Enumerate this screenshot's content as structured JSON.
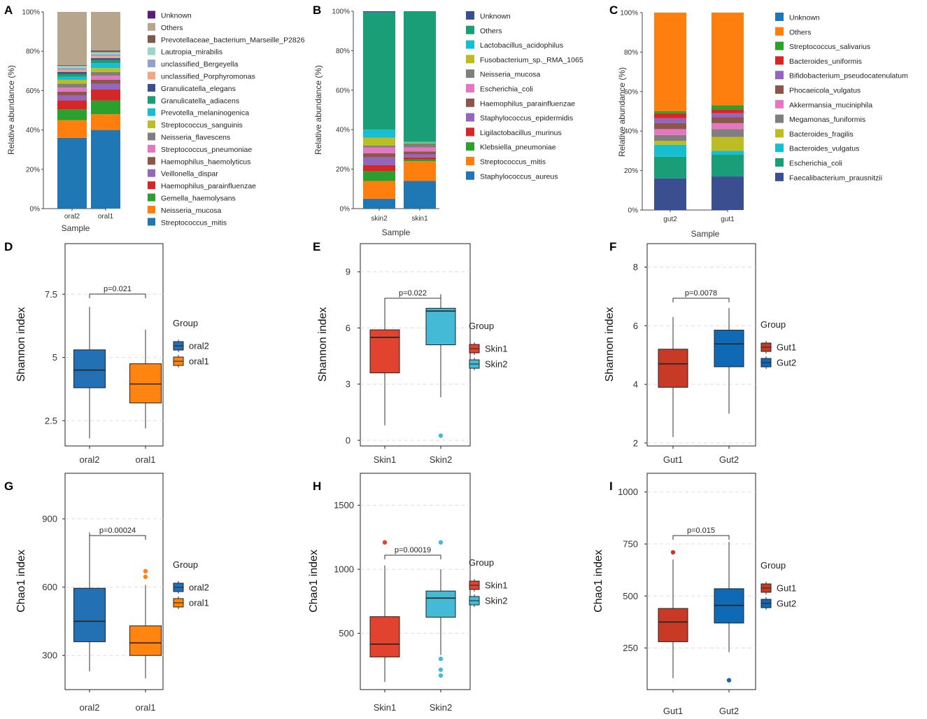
{
  "figure": {
    "title": ""
  },
  "chart_data": [
    {
      "panel": "A",
      "type": "bar",
      "stacked": true,
      "categories": [
        "oral2",
        "oral1"
      ],
      "xlabel": "Sample",
      "ylabel": "Relative abundance (%)",
      "ylim": [
        0,
        100
      ],
      "yticks": [
        "0%",
        "20%",
        "40%",
        "60%",
        "80%",
        "100%"
      ],
      "series": [
        {
          "name": "Streptococcus_mitis",
          "color": "#1f77b4",
          "values": [
            36,
            40
          ]
        },
        {
          "name": "Neisseria_mucosa",
          "color": "#ff7f0e",
          "values": [
            9,
            8
          ]
        },
        {
          "name": "Gemella_haemolysans",
          "color": "#2ca02c",
          "values": [
            5.5,
            7
          ]
        },
        {
          "name": "Haemophilus_parainfluenzae",
          "color": "#d62728",
          "values": [
            4.5,
            5.5
          ]
        },
        {
          "name": "Veillonella_dispar",
          "color": "#9467bd",
          "values": [
            2.5,
            3
          ]
        },
        {
          "name": "Haemophilus_haemolyticus",
          "color": "#8c564b",
          "values": [
            2,
            2
          ]
        },
        {
          "name": "Streptococcus_pneumoniae",
          "color": "#e377c2",
          "values": [
            2,
            2
          ]
        },
        {
          "name": "Neisseria_flavescens",
          "color": "#7f7f7f",
          "values": [
            2,
            2
          ]
        },
        {
          "name": "Streptococcus_sanguinis",
          "color": "#bcbd22",
          "values": [
            2,
            2
          ]
        },
        {
          "name": "Prevotella_melaninogenica",
          "color": "#17becf",
          "values": [
            1.5,
            2.5
          ]
        },
        {
          "name": "Granulicatella_adiacens",
          "color": "#1a9e77",
          "values": [
            1.5,
            1.5
          ]
        },
        {
          "name": "Granulicatella_elegans",
          "color": "#3b4e8f",
          "values": [
            1,
            1
          ]
        },
        {
          "name": "unclassified_Porphyromonas",
          "color": "#f4a582",
          "values": [
            1,
            1
          ]
        },
        {
          "name": "unclassified_Bergeyella",
          "color": "#8fa3c9",
          "values": [
            1,
            1
          ]
        },
        {
          "name": "Lautropia_mirabilis",
          "color": "#99d8c9",
          "values": [
            1,
            1
          ]
        },
        {
          "name": "Prevotellaceae_bacterium_Marseille_P2826",
          "color": "#7b5a4e",
          "values": [
            0.5,
            1
          ]
        },
        {
          "name": "Others",
          "color": "#b8a58e",
          "values": [
            27,
            19.5
          ]
        },
        {
          "name": "Unknown",
          "color": "#5c1a7a",
          "values": [
            0,
            0
          ]
        }
      ]
    },
    {
      "panel": "B",
      "type": "bar",
      "stacked": true,
      "categories": [
        "skin2",
        "skin1"
      ],
      "xlabel": "Sample",
      "ylabel": "Relative abundance (%)",
      "ylim": [
        0,
        100
      ],
      "yticks": [
        "0%",
        "20%",
        "40%",
        "60%",
        "80%",
        "100%"
      ],
      "series": [
        {
          "name": "Staphylococcus_aureus",
          "color": "#1f77b4",
          "values": [
            5,
            14
          ]
        },
        {
          "name": "Streptococcus_mitis",
          "color": "#ff7f0e",
          "values": [
            9,
            10
          ]
        },
        {
          "name": "Klebsiella_pneumoniae",
          "color": "#2ca02c",
          "values": [
            5,
            1
          ]
        },
        {
          "name": "Ligilactobacillus_murinus",
          "color": "#d62728",
          "values": [
            3,
            1
          ]
        },
        {
          "name": "Staphylococcus_epidermidis",
          "color": "#9467bd",
          "values": [
            4,
            1.5
          ]
        },
        {
          "name": "Haemophilus_parainfluenzae",
          "color": "#8c564b",
          "values": [
            2,
            1.5
          ]
        },
        {
          "name": "Escherichia_coli",
          "color": "#e377c2",
          "values": [
            3,
            2
          ]
        },
        {
          "name": "Neisseria_mucosa",
          "color": "#7f7f7f",
          "values": [
            1,
            2
          ]
        },
        {
          "name": "Fusobacterium_sp._RMA_1065",
          "color": "#bcbd22",
          "values": [
            4,
            0.5
          ]
        },
        {
          "name": "Lactobacillus_acidophilus",
          "color": "#17becf",
          "values": [
            4,
            0.5
          ]
        },
        {
          "name": "Others",
          "color": "#1a9e77",
          "values": [
            59.5,
            66
          ]
        },
        {
          "name": "Unknown",
          "color": "#3b4e8f",
          "values": [
            0.5,
            0
          ]
        }
      ]
    },
    {
      "panel": "C",
      "type": "bar",
      "stacked": true,
      "categories": [
        "gut2",
        "gut1"
      ],
      "xlabel": "Sample",
      "ylabel": "Relative abundance (%)",
      "ylim": [
        0,
        100
      ],
      "yticks": [
        "0%",
        "20%",
        "40%",
        "60%",
        "80%",
        "100%"
      ],
      "series": [
        {
          "name": "Faecalibacterium_prausnitzii",
          "color": "#3b4e8f",
          "values": [
            16,
            17
          ]
        },
        {
          "name": "Escherichia_coli",
          "color": "#1a9e77",
          "values": [
            11,
            11
          ]
        },
        {
          "name": "Bacteroides_vulgatus",
          "color": "#17becf",
          "values": [
            6,
            2
          ]
        },
        {
          "name": "Bacteroides_fragilis",
          "color": "#bcbd22",
          "values": [
            2,
            7
          ]
        },
        {
          "name": "Megamonas_funiformis",
          "color": "#7f7f7f",
          "values": [
            3,
            4
          ]
        },
        {
          "name": "Akkermansia_muciniphila",
          "color": "#e377c2",
          "values": [
            3,
            3
          ]
        },
        {
          "name": "Phocaeicola_vulgatus",
          "color": "#8c564b",
          "values": [
            3,
            3
          ]
        },
        {
          "name": "Bifidobacterium_pseudocatenulatum",
          "color": "#9467bd",
          "values": [
            2.5,
            2
          ]
        },
        {
          "name": "Bacteroides_uniformis",
          "color": "#d62728",
          "values": [
            2.5,
            2
          ]
        },
        {
          "name": "Streptococcus_salivarius",
          "color": "#2ca02c",
          "values": [
            1,
            2
          ]
        },
        {
          "name": "Others",
          "color": "#ff7f0e",
          "values": [
            50,
            47
          ]
        },
        {
          "name": "Unknown",
          "color": "#1f77b4",
          "values": [
            0,
            0
          ]
        }
      ]
    },
    {
      "panel": "D",
      "type": "box",
      "xlabel": "",
      "ylabel": "Shannon index",
      "ylim": [
        1.5,
        9.5
      ],
      "yticks": [
        "2.5",
        "5",
        "7.5"
      ],
      "ytick_values": [
        2.5,
        5,
        7.5
      ],
      "pvalue": "p=0.021",
      "legend_title": "Group",
      "legend": [
        "oral2",
        "oral1"
      ],
      "groups": [
        {
          "name": "oral2",
          "color": "#2470b5",
          "whisker_low": 1.8,
          "q1": 3.8,
          "median": 4.5,
          "q3": 5.3,
          "whisker_high": 7.0,
          "outliers": []
        },
        {
          "name": "oral1",
          "color": "#ff8410",
          "whisker_low": 2.2,
          "q1": 3.2,
          "median": 3.95,
          "q3": 4.75,
          "whisker_high": 6.1,
          "outliers": []
        }
      ]
    },
    {
      "panel": "E",
      "type": "box",
      "xlabel": "",
      "ylabel": "Shannon index",
      "ylim": [
        -0.3,
        10.5
      ],
      "yticks": [
        "0",
        "3",
        "6",
        "9"
      ],
      "ytick_values": [
        0,
        3,
        6,
        9
      ],
      "pvalue": "p=0.022",
      "legend_title": "Group",
      "legend": [
        "Skin1",
        "Skin2"
      ],
      "groups": [
        {
          "name": "Skin1",
          "color": "#e2432e",
          "whisker_low": 0.8,
          "q1": 3.6,
          "median": 5.5,
          "q3": 5.9,
          "whisker_high": 7.5,
          "outliers": []
        },
        {
          "name": "Skin2",
          "color": "#45bad6",
          "whisker_low": 2.3,
          "q1": 5.1,
          "median": 6.9,
          "q3": 7.05,
          "whisker_high": 7.8,
          "outliers": [
            0.25
          ]
        }
      ]
    },
    {
      "panel": "F",
      "type": "box",
      "xlabel": "",
      "ylabel": "Shannon index",
      "ylim": [
        1.9,
        8.8
      ],
      "yticks": [
        "2",
        "4",
        "6",
        "8"
      ],
      "ytick_values": [
        2,
        4,
        6,
        8
      ],
      "pvalue": "p=0.0078",
      "legend_title": "Group",
      "legend": [
        "Gut1",
        "Gut2"
      ],
      "groups": [
        {
          "name": "Gut1",
          "color": "#c93a26",
          "whisker_low": 2.2,
          "q1": 3.9,
          "median": 4.7,
          "q3": 5.2,
          "whisker_high": 6.3,
          "outliers": []
        },
        {
          "name": "Gut2",
          "color": "#0e6ab5",
          "whisker_low": 3.0,
          "q1": 4.6,
          "median": 5.38,
          "q3": 5.85,
          "whisker_high": 6.6,
          "outliers": []
        }
      ]
    },
    {
      "panel": "G",
      "type": "box",
      "xlabel": "",
      "ylabel": "Chao1 index",
      "ylim": [
        150,
        1100
      ],
      "yticks": [
        "300",
        "600",
        "900"
      ],
      "ytick_values": [
        300,
        600,
        900
      ],
      "pvalue": "p=0.00024",
      "legend_title": "Group",
      "legend": [
        "oral2",
        "oral1"
      ],
      "groups": [
        {
          "name": "oral2",
          "color": "#2470b5",
          "whisker_low": 230,
          "q1": 360,
          "median": 450,
          "q3": 595,
          "whisker_high": 840,
          "outliers": []
        },
        {
          "name": "oral1",
          "color": "#ff8410",
          "whisker_low": 200,
          "q1": 300,
          "median": 355,
          "q3": 430,
          "whisker_high": 610,
          "outliers": [
            645,
            670
          ]
        }
      ]
    },
    {
      "panel": "H",
      "type": "box",
      "xlabel": "",
      "ylabel": "Chao1 index",
      "ylim": [
        60,
        1750
      ],
      "yticks": [
        "500",
        "1000",
        "1500"
      ],
      "ytick_values": [
        500,
        1000,
        1500
      ],
      "pvalue": "p=0.00019",
      "legend_title": "Group",
      "legend": [
        "Skin1",
        "Skin2"
      ],
      "groups": [
        {
          "name": "Skin1",
          "color": "#e2432e",
          "whisker_low": 120,
          "q1": 315,
          "median": 415,
          "q3": 630,
          "whisker_high": 1030,
          "outliers": [
            1210
          ]
        },
        {
          "name": "Skin2",
          "color": "#45bad6",
          "whisker_low": 330,
          "q1": 625,
          "median": 775,
          "q3": 830,
          "whisker_high": 1000,
          "outliers": [
            1210,
            300,
            215,
            170
          ]
        }
      ]
    },
    {
      "panel": "I",
      "type": "box",
      "xlabel": "",
      "ylabel": "Chao1 index",
      "ylim": [
        50,
        1090
      ],
      "yticks": [
        "250",
        "500",
        "750",
        "1000"
      ],
      "ytick_values": [
        250,
        500,
        750,
        1000
      ],
      "pvalue": "p=0.015",
      "legend_title": "Group",
      "legend": [
        "Gut1",
        "Gut2"
      ],
      "groups": [
        {
          "name": "Gut1",
          "color": "#c93a26",
          "whisker_low": 105,
          "q1": 280,
          "median": 375,
          "q3": 440,
          "whisker_high": 675,
          "outliers": [
            710
          ]
        },
        {
          "name": "Gut2",
          "color": "#0e6ab5",
          "whisker_low": 230,
          "q1": 370,
          "median": 455,
          "q3": 535,
          "whisker_high": 760,
          "outliers": [
            95
          ]
        }
      ]
    }
  ]
}
